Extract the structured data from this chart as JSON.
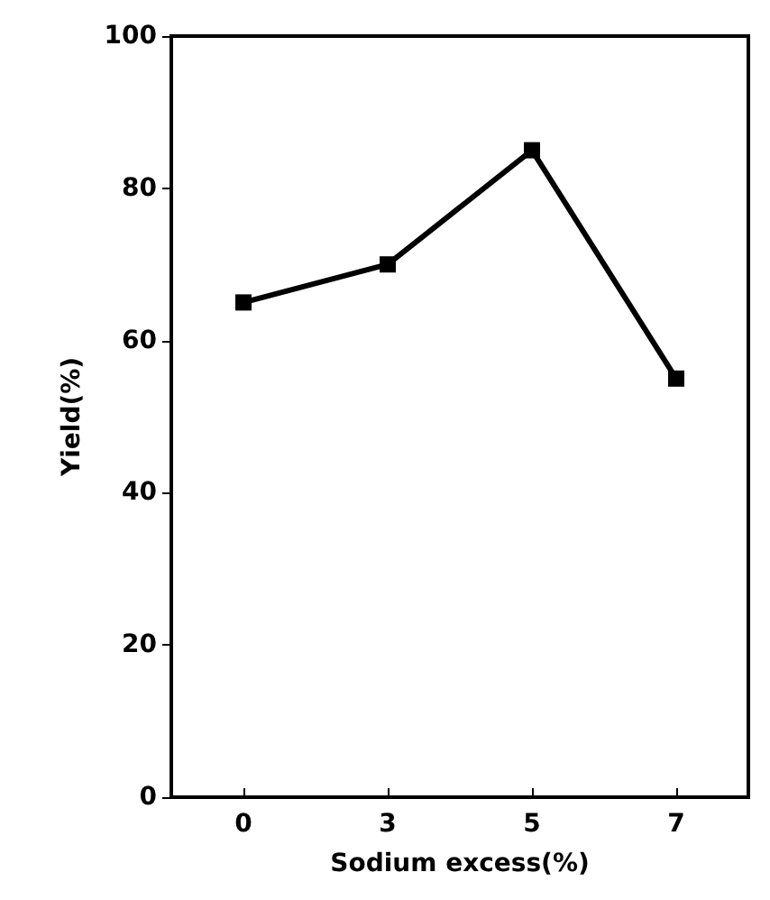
{
  "chart_data": {
    "type": "line",
    "xlabel": "Sodium excess(%)",
    "ylabel": "Yield(%)",
    "categories": [
      "0",
      "3",
      "5",
      "7"
    ],
    "series": [
      {
        "color": "#000000",
        "values": [
          65,
          70,
          85,
          55
        ]
      }
    ],
    "ylim": [
      0,
      100
    ],
    "yticks": [
      0,
      20,
      40,
      60,
      80,
      100
    ],
    "grid": false,
    "marker": "square",
    "line_style": "solid"
  }
}
